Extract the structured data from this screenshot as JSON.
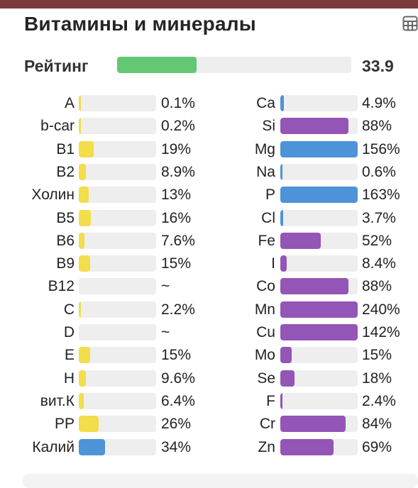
{
  "header": {
    "title": "Витамины и минералы",
    "table_icon": "table-grid-icon"
  },
  "rating": {
    "label": "Рейтинг",
    "value": "33.9",
    "level_fraction": 0.34,
    "color": "#63c774"
  },
  "colors": {
    "track": "#eeeeee",
    "yellow": "#f2dd4a",
    "blue": "#4d93d8",
    "purple": "#9355b6"
  },
  "vitamins": [
    {
      "name": "A",
      "value": "0.1%",
      "level": 0.001,
      "color": "yellow"
    },
    {
      "name": "b-car",
      "value": "0.2%",
      "level": 0.002,
      "color": "yellow"
    },
    {
      "name": "B1",
      "value": "19%",
      "level": 0.19,
      "color": "yellow"
    },
    {
      "name": "B2",
      "value": "8.9%",
      "level": 0.089,
      "color": "yellow"
    },
    {
      "name": "Холин",
      "value": "13%",
      "level": 0.13,
      "color": "yellow"
    },
    {
      "name": "B5",
      "value": "16%",
      "level": 0.16,
      "color": "yellow"
    },
    {
      "name": "B6",
      "value": "7.6%",
      "level": 0.076,
      "color": "yellow"
    },
    {
      "name": "B9",
      "value": "15%",
      "level": 0.15,
      "color": "yellow"
    },
    {
      "name": "B12",
      "value": "~",
      "level": 0,
      "color": "yellow"
    },
    {
      "name": "C",
      "value": "2.2%",
      "level": 0.022,
      "color": "yellow"
    },
    {
      "name": "D",
      "value": "~",
      "level": 0,
      "color": "yellow"
    },
    {
      "name": "E",
      "value": "15%",
      "level": 0.15,
      "color": "yellow"
    },
    {
      "name": "H",
      "value": "9.6%",
      "level": 0.096,
      "color": "yellow"
    },
    {
      "name": "вит.К",
      "value": "6.4%",
      "level": 0.064,
      "color": "yellow"
    },
    {
      "name": "PP",
      "value": "26%",
      "level": 0.26,
      "color": "yellow"
    },
    {
      "name": "Калий",
      "value": "34%",
      "level": 0.34,
      "color": "blue"
    }
  ],
  "minerals": [
    {
      "name": "Ca",
      "value": "4.9%",
      "level": 0.049,
      "color": "blue"
    },
    {
      "name": "Si",
      "value": "88%",
      "level": 0.88,
      "color": "purple"
    },
    {
      "name": "Mg",
      "value": "156%",
      "level": 1.0,
      "color": "blue"
    },
    {
      "name": "Na",
      "value": "0.6%",
      "level": 0.006,
      "color": "blue"
    },
    {
      "name": "P",
      "value": "163%",
      "level": 1.0,
      "color": "blue"
    },
    {
      "name": "Cl",
      "value": "3.7%",
      "level": 0.037,
      "color": "blue"
    },
    {
      "name": "Fe",
      "value": "52%",
      "level": 0.52,
      "color": "purple"
    },
    {
      "name": "I",
      "value": "8.4%",
      "level": 0.084,
      "color": "purple"
    },
    {
      "name": "Co",
      "value": "88%",
      "level": 0.88,
      "color": "purple"
    },
    {
      "name": "Mn",
      "value": "240%",
      "level": 1.0,
      "color": "purple"
    },
    {
      "name": "Cu",
      "value": "142%",
      "level": 1.0,
      "color": "purple"
    },
    {
      "name": "Mo",
      "value": "15%",
      "level": 0.15,
      "color": "purple"
    },
    {
      "name": "Se",
      "value": "18%",
      "level": 0.18,
      "color": "purple"
    },
    {
      "name": "F",
      "value": "2.4%",
      "level": 0.024,
      "color": "purple"
    },
    {
      "name": "Cr",
      "value": "84%",
      "level": 0.84,
      "color": "purple"
    },
    {
      "name": "Zn",
      "value": "69%",
      "level": 0.69,
      "color": "purple"
    }
  ]
}
